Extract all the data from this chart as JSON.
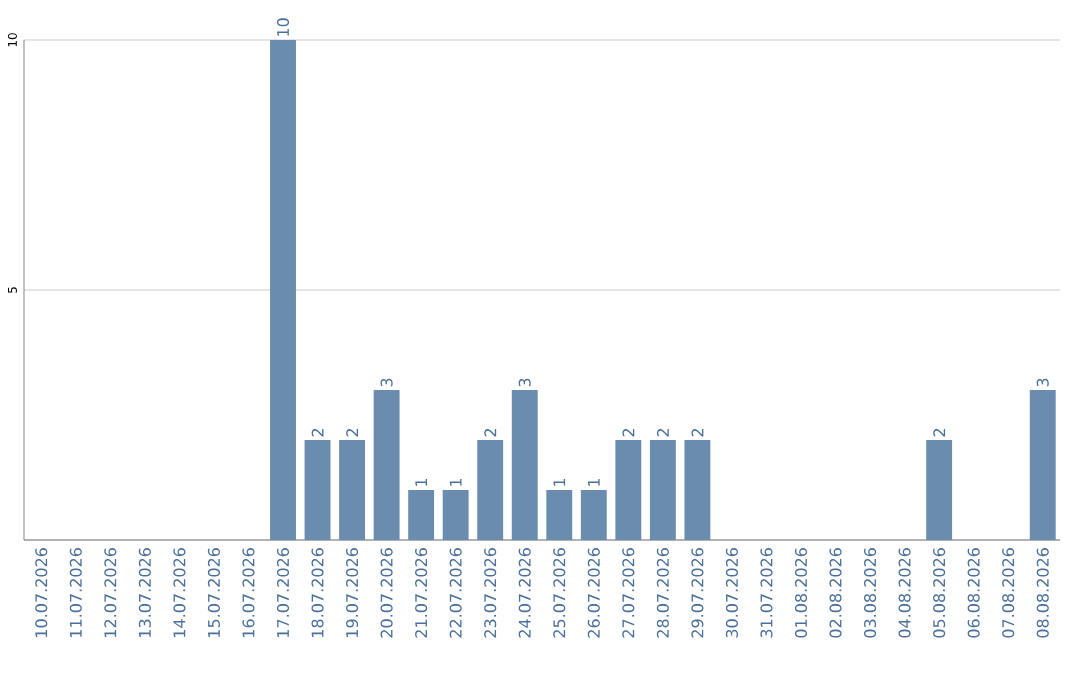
{
  "chart_data": {
    "type": "bar",
    "categories": [
      "10.07.2026",
      "11.07.2026",
      "12.07.2026",
      "13.07.2026",
      "14.07.2026",
      "15.07.2026",
      "16.07.2026",
      "17.07.2026",
      "18.07.2026",
      "19.07.2026",
      "20.07.2026",
      "21.07.2026",
      "22.07.2026",
      "23.07.2026",
      "24.07.2026",
      "25.07.2026",
      "26.07.2026",
      "27.07.2026",
      "28.07.2026",
      "29.07.2026",
      "30.07.2026",
      "31.07.2026",
      "01.08.2026",
      "02.08.2026",
      "03.08.2026",
      "04.08.2026",
      "05.08.2026",
      "06.08.2026",
      "07.08.2026",
      "08.08.2026"
    ],
    "values": [
      0,
      0,
      0,
      0,
      0,
      0,
      0,
      10,
      2,
      2,
      3,
      1,
      1,
      2,
      3,
      1,
      1,
      2,
      2,
      2,
      0,
      0,
      0,
      0,
      0,
      0,
      2,
      0,
      0,
      3
    ],
    "value_labels": [
      null,
      null,
      null,
      null,
      null,
      null,
      null,
      "10",
      "2",
      "2",
      "3",
      "1",
      "1",
      "2",
      "3",
      "1",
      "1",
      "2",
      "2",
      "2",
      null,
      null,
      null,
      null,
      null,
      null,
      "2",
      null,
      null,
      "3"
    ],
    "color": "#6a8cae",
    "ylim": [
      0,
      10
    ],
    "yticks": [
      {
        "value": 0,
        "label": null
      },
      5,
      10
    ],
    "grid": "y"
  }
}
